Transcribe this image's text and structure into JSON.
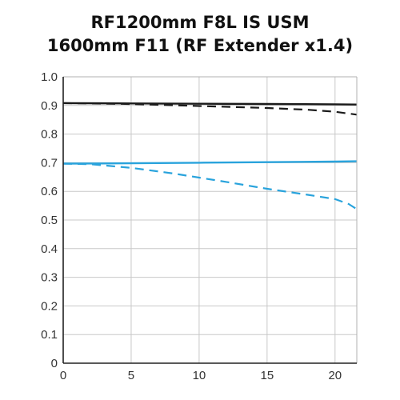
{
  "chart_data": {
    "type": "line",
    "title": [
      "RF1200mm F8L IS USM",
      "1600mm F11 (RF Extender x1.4)"
    ],
    "xlabel": "",
    "ylabel": "",
    "xlim": [
      0,
      21.6
    ],
    "ylim": [
      0,
      1.0
    ],
    "x_ticks": [
      0,
      5,
      10,
      15,
      20
    ],
    "x_tick_labels": [
      "0",
      "5",
      "10",
      "15",
      "20"
    ],
    "y_ticks": [
      0,
      0.1,
      0.2,
      0.3,
      0.4,
      0.5,
      0.6,
      0.7,
      0.8,
      0.9,
      1.0
    ],
    "y_tick_labels": [
      "0",
      "0.1",
      "0.2",
      "0.3",
      "0.4",
      "0.5",
      "0.6",
      "0.7",
      "0.8",
      "0.9",
      "1.0"
    ],
    "grid": true,
    "legend": "none",
    "series": [
      {
        "color": "#1a1a1a",
        "style": "solid",
        "x": [
          0,
          5,
          10,
          15,
          20,
          21.6
        ],
        "y": [
          0.908,
          0.907,
          0.906,
          0.905,
          0.904,
          0.903
        ]
      },
      {
        "color": "#1a1a1a",
        "style": "dashed",
        "x": [
          0,
          5,
          10,
          15,
          18,
          20,
          21.6
        ],
        "y": [
          0.908,
          0.905,
          0.898,
          0.891,
          0.885,
          0.878,
          0.868
        ]
      },
      {
        "color": "#29a3dc",
        "style": "solid",
        "x": [
          0,
          5,
          10,
          15,
          20,
          21.6
        ],
        "y": [
          0.697,
          0.698,
          0.7,
          0.702,
          0.704,
          0.705
        ]
      },
      {
        "color": "#29a3dc",
        "style": "dashed",
        "x": [
          0,
          2,
          5,
          8,
          10,
          12,
          15,
          18,
          20,
          21,
          21.6
        ],
        "y": [
          0.697,
          0.695,
          0.682,
          0.663,
          0.648,
          0.633,
          0.609,
          0.588,
          0.573,
          0.556,
          0.538
        ]
      }
    ]
  }
}
